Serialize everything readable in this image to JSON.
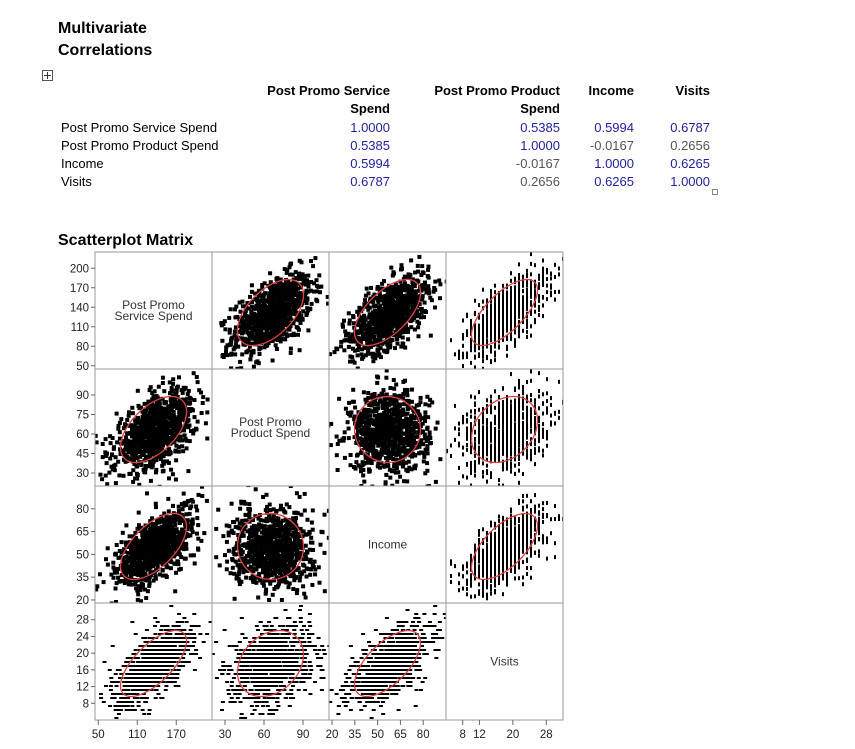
{
  "report": {
    "title_line1": "Multivariate",
    "title_line2": "Correlations"
  },
  "correlations": {
    "headers": [
      [
        "Post Promo Service",
        "Spend"
      ],
      [
        "Post Promo Product",
        "Spend"
      ],
      [
        "Income"
      ],
      [
        "Visits"
      ]
    ],
    "row_labels": [
      "Post Promo Service Spend",
      "Post Promo Product Spend",
      "Income",
      "Visits"
    ],
    "values": [
      [
        "1.0000",
        "0.5385",
        "0.5994",
        "0.6787"
      ],
      [
        "0.5385",
        "1.0000",
        "-0.0167",
        "0.2656"
      ],
      [
        "0.5994",
        "-0.0167",
        "1.0000",
        "0.6265"
      ],
      [
        "0.6787",
        "0.2656",
        "0.6265",
        "1.0000"
      ]
    ],
    "colors": {
      "strong": "#1f1f9e",
      "weak": "#555555"
    }
  },
  "scatterplot_matrix": {
    "title": "Scatterplot Matrix",
    "ellipse_color": "#e04040"
  },
  "chart_data": {
    "type": "scatter",
    "variables": [
      {
        "label_lines": [
          "Post Promo",
          "Service Spend"
        ],
        "ticks": [
          50,
          80,
          110,
          140,
          170,
          200
        ],
        "x_ticks": [
          50,
          110,
          170
        ],
        "range": [
          45,
          225
        ]
      },
      {
        "label_lines": [
          "Post Promo",
          "Product Spend"
        ],
        "ticks": [
          30,
          45,
          60,
          75,
          90
        ],
        "x_ticks": [
          30,
          60,
          90
        ],
        "range": [
          20,
          110
        ]
      },
      {
        "label_lines": [
          "Income"
        ],
        "ticks": [
          20,
          35,
          50,
          65,
          80
        ],
        "x_ticks": [
          20,
          35,
          50,
          65,
          80
        ],
        "range": [
          18,
          95
        ]
      },
      {
        "label_lines": [
          "Visits"
        ],
        "ticks": [
          8,
          12,
          16,
          20,
          24,
          28
        ],
        "x_ticks": [
          8,
          12,
          20,
          28
        ],
        "range": [
          4,
          32
        ]
      }
    ],
    "correlations": [
      [
        1.0,
        0.5385,
        0.5994,
        0.6787
      ],
      [
        0.5385,
        1.0,
        -0.0167,
        0.2656
      ],
      [
        0.5994,
        -0.0167,
        1.0,
        0.6265
      ],
      [
        0.6787,
        0.2656,
        0.6265,
        1.0
      ]
    ],
    "density_ellipse": true
  }
}
